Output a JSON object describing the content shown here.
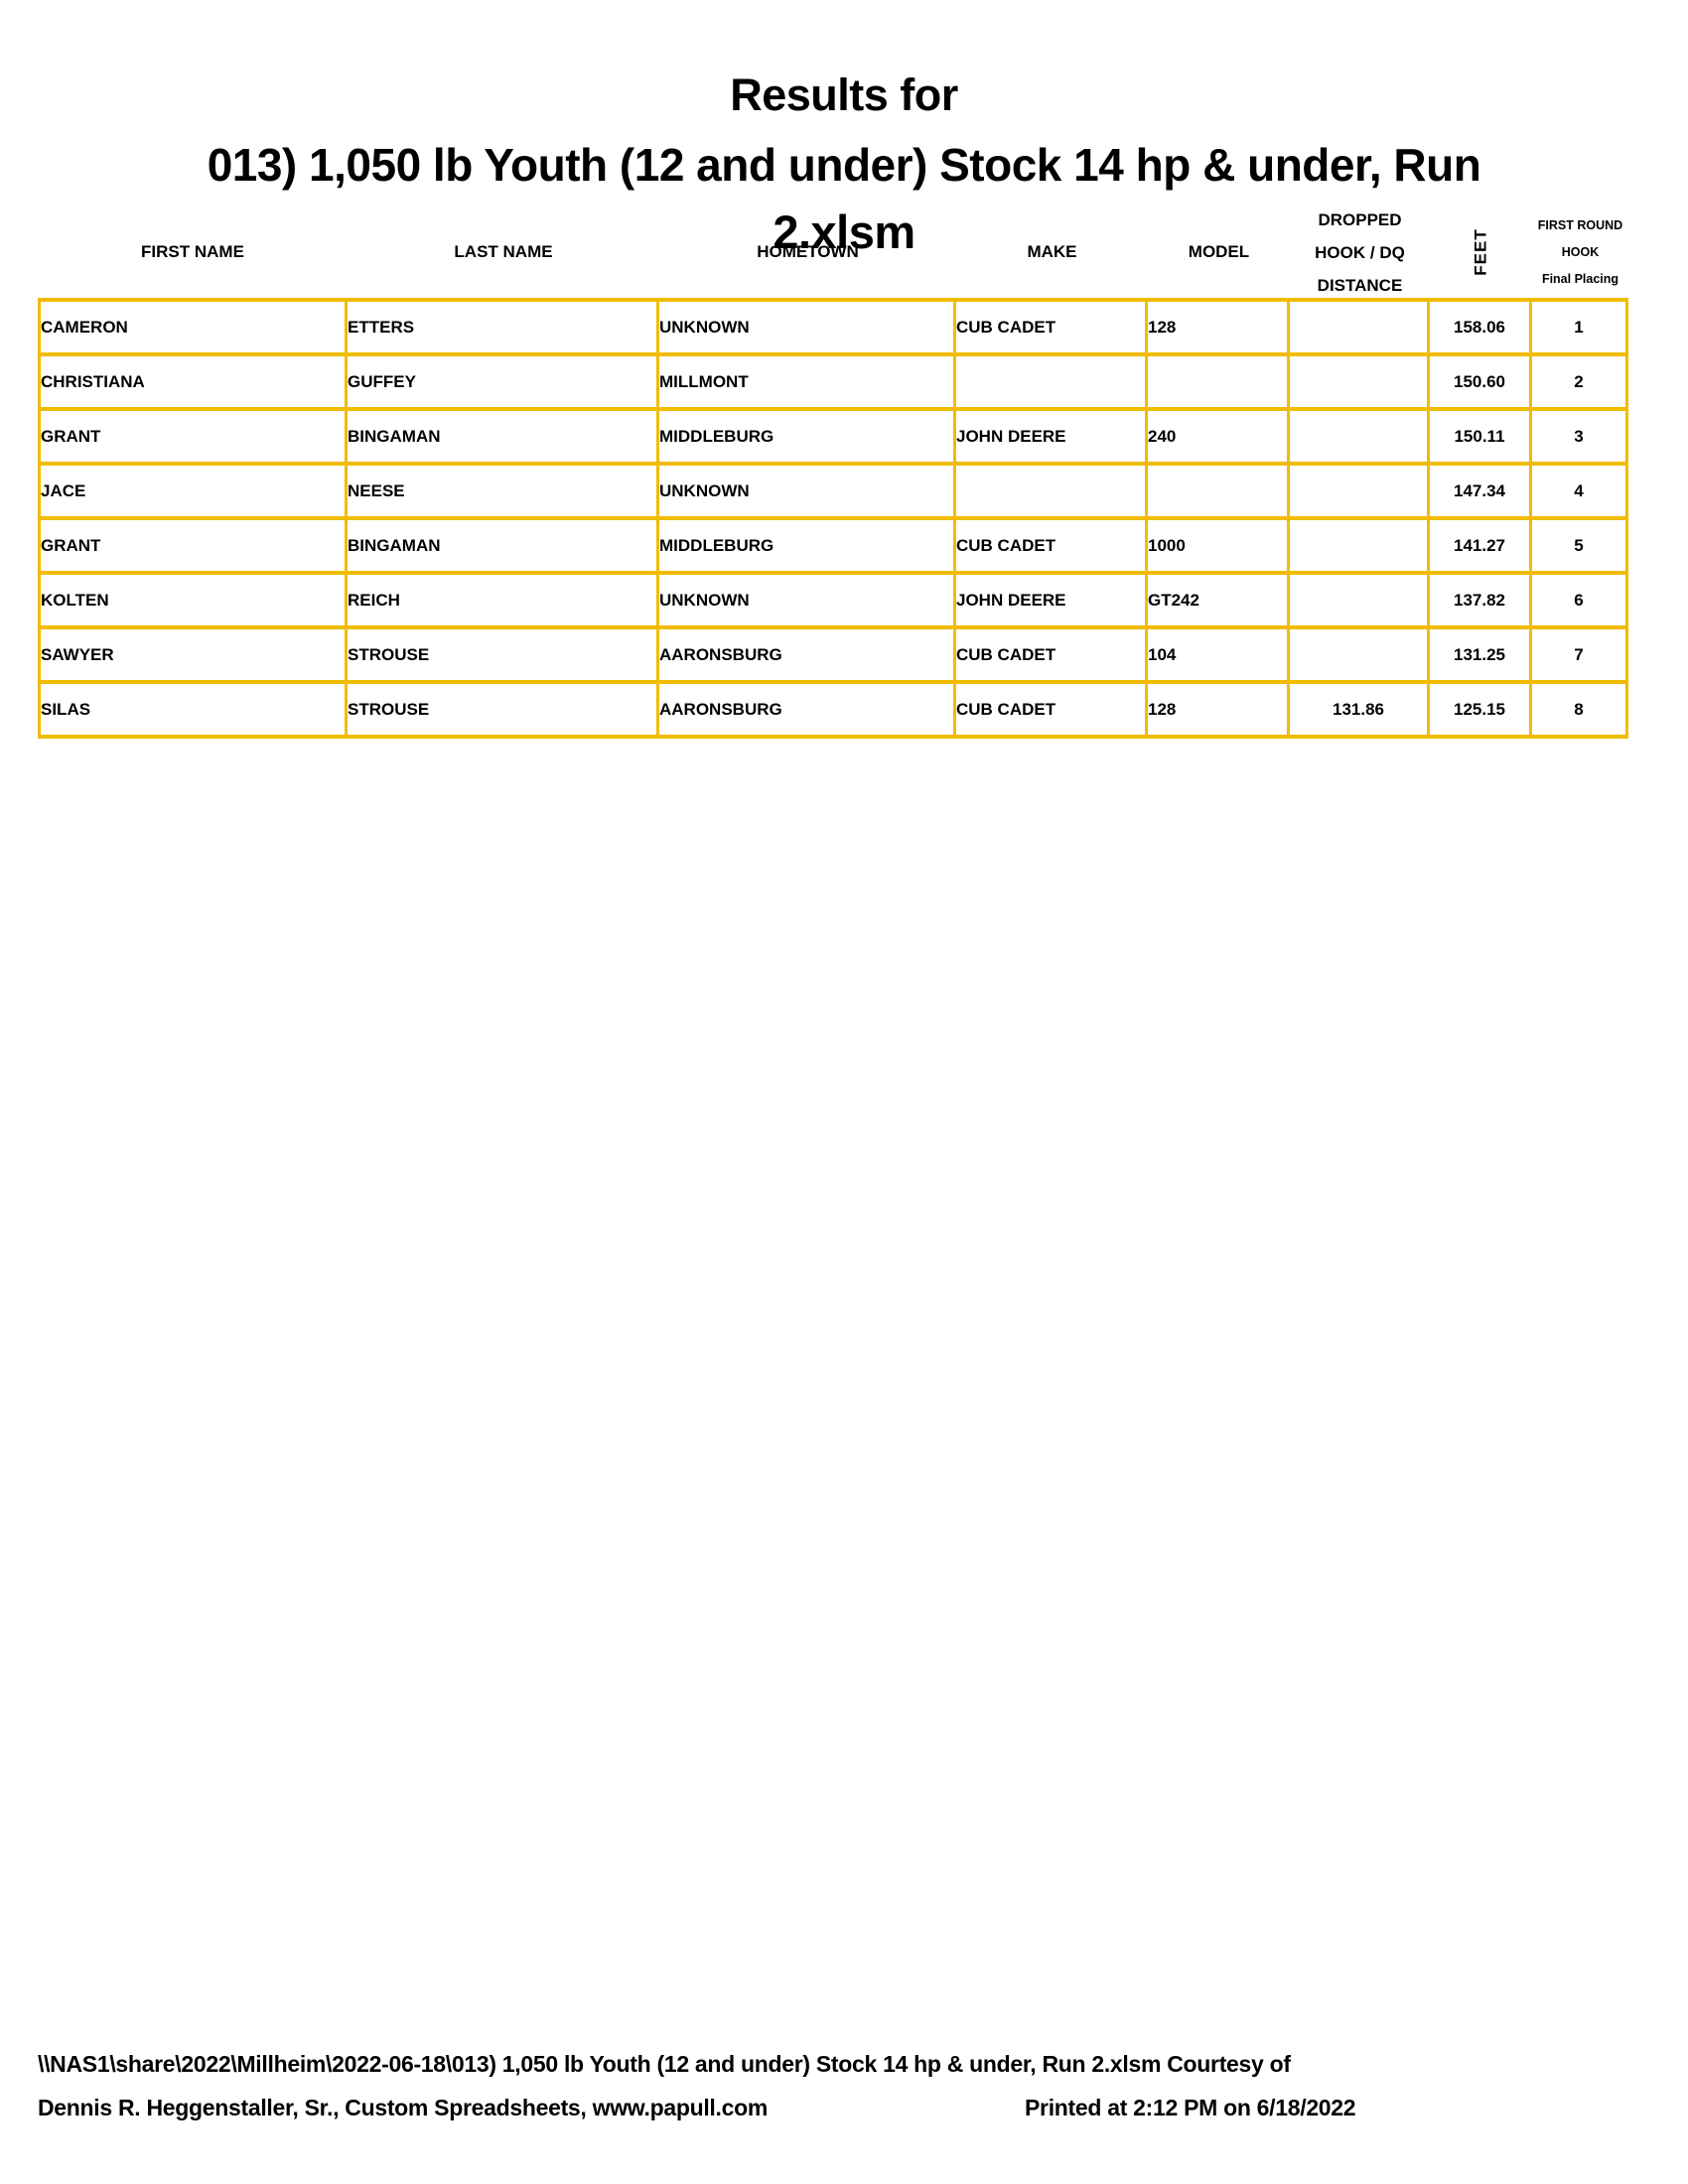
{
  "colors": {
    "border": "#F0BC00",
    "text": "#000000",
    "background": "#FFFFFF"
  },
  "title": {
    "line1": "Results for",
    "line2": "013) 1,050 lb Youth (12 and under) Stock 14 hp & under, Run",
    "line3": "2.xlsm"
  },
  "table": {
    "columns": [
      {
        "label": "FIRST NAME"
      },
      {
        "label": "LAST NAME"
      },
      {
        "label": "HOMETOWN"
      },
      {
        "label": "MAKE"
      },
      {
        "label": "MODEL"
      },
      {
        "label_lines": [
          "DROPPED",
          "HOOK / DQ",
          "DISTANCE"
        ]
      },
      {
        "label": "FEET",
        "orientation": "vertical"
      },
      {
        "label_lines": [
          "FIRST ROUND",
          "HOOK",
          "Final Placing"
        ]
      }
    ],
    "rows": [
      [
        "CAMERON",
        "ETTERS",
        "UNKNOWN",
        "CUB CADET",
        "128",
        "",
        "158.06",
        "1"
      ],
      [
        "CHRISTIANA",
        "GUFFEY",
        "MILLMONT",
        "",
        "",
        "",
        "150.60",
        "2"
      ],
      [
        "GRANT",
        "BINGAMAN",
        "MIDDLEBURG",
        "JOHN DEERE",
        "240",
        "",
        "150.11",
        "3"
      ],
      [
        "JACE",
        "NEESE",
        "UNKNOWN",
        "",
        "",
        "",
        "147.34",
        "4"
      ],
      [
        "GRANT",
        "BINGAMAN",
        "MIDDLEBURG",
        "CUB CADET",
        "1000",
        "",
        "141.27",
        "5"
      ],
      [
        "KOLTEN",
        "REICH",
        "UNKNOWN",
        "JOHN DEERE",
        "GT242",
        "",
        "137.82",
        "6"
      ],
      [
        "SAWYER",
        "STROUSE",
        "AARONSBURG",
        "CUB CADET",
        "104",
        "",
        "131.25",
        "7"
      ],
      [
        "SILAS",
        "STROUSE",
        "AARONSBURG",
        "CUB CADET",
        "128",
        "131.86",
        "125.15",
        "8"
      ]
    ]
  },
  "footer": {
    "line1": "\\\\NAS1\\share\\2022\\Millheim\\2022-06-18\\013) 1,050 lb Youth (12 and under) Stock 14 hp & under, Run 2.xlsm  Courtesy of",
    "line2": "Dennis R. Heggenstaller, Sr., Custom Spreadsheets, www.papull.com",
    "printed": "Printed at 2:12 PM on 6/18/2022"
  }
}
